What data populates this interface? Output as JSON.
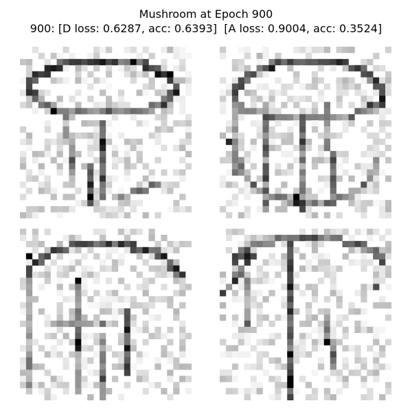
{
  "figure": {
    "title": "Mushroom at Epoch 900",
    "subtitle": "900: [D loss: 0.6287, acc: 0.6393]  [A loss: 0.9004, acc: 0.3524]"
  },
  "samples": [
    {
      "icon": "mushroom-sample-image"
    },
    {
      "icon": "mushroom-sample-image"
    },
    {
      "icon": "mushroom-sample-image"
    },
    {
      "icon": "mushroom-sample-image"
    }
  ]
}
